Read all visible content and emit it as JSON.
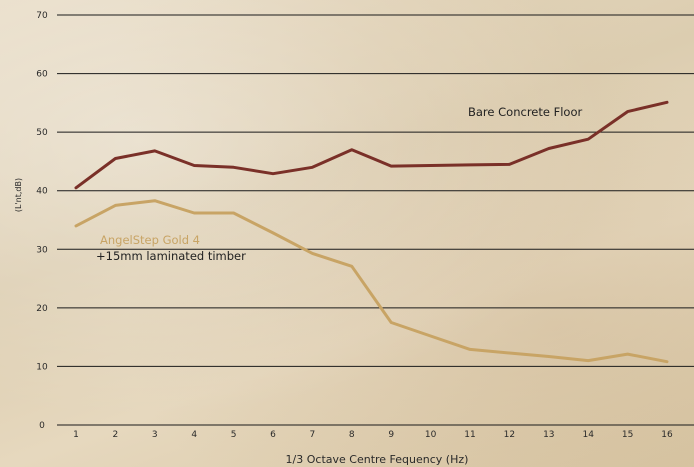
{
  "chart_data": {
    "type": "line",
    "categories": [
      "1",
      "2",
      "3",
      "4",
      "5",
      "6",
      "7",
      "8",
      "9",
      "10",
      "11",
      "12",
      "13",
      "14",
      "15",
      "16"
    ],
    "series": [
      {
        "name": "Bare Concrete Floor",
        "color": "#7a3028",
        "values": [
          40.5,
          45.5,
          46.8,
          44.3,
          44.0,
          42.9,
          44.0,
          47.0,
          44.2,
          44.3,
          44.4,
          44.5,
          47.2,
          48.8,
          53.5,
          55.1
        ]
      },
      {
        "name": "AngelStep Gold 4",
        "name_line2": "+15mm laminated timber",
        "color": "#c8a465",
        "values": [
          34.0,
          37.5,
          38.3,
          36.2,
          36.2,
          32.8,
          29.3,
          27.1,
          17.5,
          15.2,
          12.9,
          12.3,
          11.7,
          11.0,
          12.1,
          10.8
        ]
      }
    ],
    "ylim": [
      0,
      70
    ],
    "yticks": [
      0,
      10,
      20,
      30,
      40,
      50,
      60,
      70
    ],
    "ylabel": "(L'nt,dB)",
    "xlabel_main": "1/3 Octave Centre Fequency",
    "xlabel_unit": " (Hz)",
    "grid": true
  }
}
